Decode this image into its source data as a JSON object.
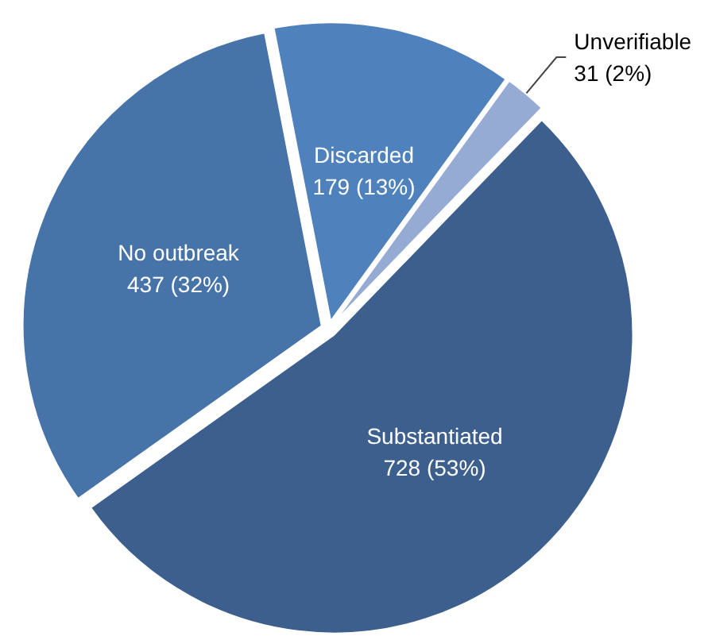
{
  "chart_data": {
    "type": "pie",
    "categories": [
      "Substantiated",
      "No outbreak",
      "Discarded",
      "Unverifiable"
    ],
    "values": [
      728,
      437,
      179,
      31
    ],
    "colors": [
      "#3c5f8e",
      "#4673a8",
      "#4f81bd",
      "#95abd3"
    ],
    "value_labels": [
      "728 (53%)",
      "437 (32%)",
      "179 (13%)",
      "31 (2%)"
    ]
  }
}
